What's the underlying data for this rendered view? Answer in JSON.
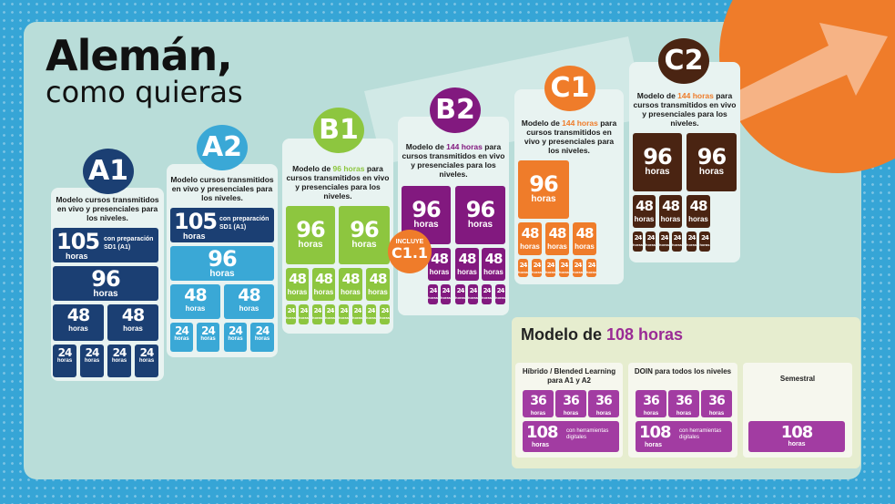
{
  "title": {
    "main": "Alemán,",
    "sub": "como quieras"
  },
  "colors": {
    "A1": "#1b3f73",
    "A2": "#3aa8d6",
    "B1": "#8dc63f",
    "B2": "#82197f",
    "C1": "#ef7c2a",
    "C2": "#4a2412",
    "accent": "#a23ca2"
  },
  "hours_label": "horas",
  "levels": {
    "a1": {
      "badge": "A1",
      "desc": "Modelo cursos transmitidos en vivo y presenciales para los niveles.",
      "n105": "105",
      "prep": "con preparación SD1 (A1)",
      "n96": "96",
      "n48": "48",
      "n24": "24"
    },
    "a2": {
      "badge": "A2",
      "desc": "Modelo cursos transmitidos en vivo y presenciales para los niveles.",
      "n105": "105",
      "prep": "con preparación SD1 (A1)",
      "n96": "96",
      "n48": "48",
      "n24": "24"
    },
    "b1": {
      "badge": "B1",
      "desc_pre": "Modelo de ",
      "desc_hl": "96 horas",
      "desc_post": " para cursos transmitidos en vivo y presenciales para los niveles.",
      "n96": "96",
      "n48": "48",
      "n24": "24"
    },
    "b2": {
      "badge": "B2",
      "desc_pre": "Modelo de ",
      "desc_hl": "144 horas",
      "desc_post": " para cursos transmitidos en vivo y presenciales para los niveles.",
      "n96": "96",
      "n48": "48",
      "n24": "24",
      "incluye": "INCLUYE",
      "incluye_level": "C1.1"
    },
    "c1": {
      "badge": "C1",
      "desc_pre": "Modelo de ",
      "desc_hl": "144 horas",
      "desc_post": " para cursos transmitidos en vivo y presenciales para los niveles.",
      "n96": "96",
      "n48": "48",
      "n24": "24"
    },
    "c2": {
      "badge": "C2",
      "desc_pre": "Modelo de ",
      "desc_hl": "144 horas",
      "desc_post": " para cursos transmitidos en vivo y presenciales para los niveles.",
      "n96": "96",
      "n48": "48",
      "n24": "24"
    }
  },
  "bottom": {
    "title_pre": "Modelo de ",
    "title_hl": "108 horas",
    "hibrido": {
      "title": "Híbrido / Blended Learning para A1 y A2",
      "n36": "36",
      "n108": "108",
      "note": "con herramientas digitales"
    },
    "doin": {
      "title": "DOIN para todos los niveles",
      "n36": "36",
      "n108": "108",
      "note": "con herramientas digitales"
    },
    "semestral": {
      "title": "Semestral",
      "n108": "108"
    }
  }
}
